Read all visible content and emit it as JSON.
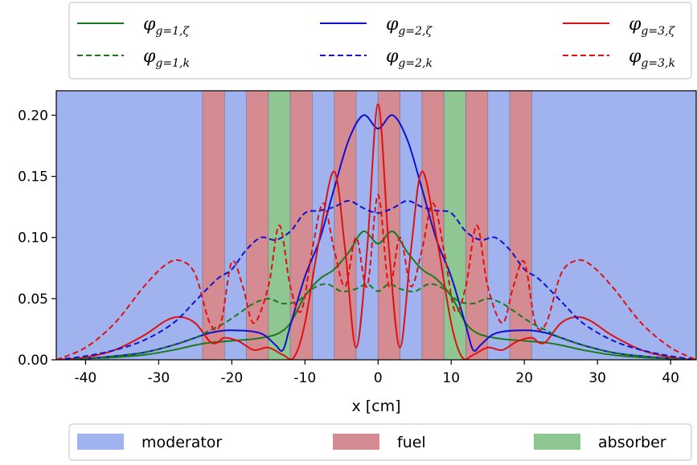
{
  "chart_data": {
    "type": "line",
    "xlabel": "x [cm]",
    "ylabel": "",
    "xlim": [
      -44,
      43.5
    ],
    "ylim": [
      0,
      0.22
    ],
    "xticks": [
      -40,
      -30,
      -20,
      -10,
      0,
      10,
      20,
      30,
      40
    ],
    "xtick_labels": [
      "-40",
      "-30",
      "-20",
      "-10",
      "0",
      "10",
      "20",
      "30",
      "40"
    ],
    "yticks": [
      0.0,
      0.05,
      0.1,
      0.15,
      0.2
    ],
    "ytick_labels": [
      "0.00",
      "0.05",
      "0.10",
      "0.15",
      "0.20"
    ],
    "grid": false,
    "regions": [
      {
        "material": "fuel",
        "x0": -24,
        "x1": -21
      },
      {
        "material": "fuel",
        "x0": -18,
        "x1": -15
      },
      {
        "material": "absorber",
        "x0": -15,
        "x1": -12
      },
      {
        "material": "fuel",
        "x0": -12,
        "x1": -9
      },
      {
        "material": "fuel",
        "x0": -6,
        "x1": -3
      },
      {
        "material": "fuel",
        "x0": 0,
        "x1": 3
      },
      {
        "material": "fuel",
        "x0": 6,
        "x1": 9
      },
      {
        "material": "absorber",
        "x0": 9,
        "x1": 12
      },
      {
        "material": "fuel",
        "x0": 12,
        "x1": 15
      },
      {
        "material": "fuel",
        "x0": 18,
        "x1": 21
      }
    ],
    "region_colors": {
      "moderator": "#a1b3ee",
      "fuel": "#d48b92",
      "absorber": "#8fc793"
    },
    "series": [
      {
        "name_base": "φ",
        "name_sub": "g=1,ζ",
        "color": "#1a7a1a",
        "dash": "solid",
        "x": [
          -44,
          -40,
          -36,
          -32,
          -28,
          -25,
          -23,
          -21,
          -19,
          -17,
          -15,
          -13.5,
          -12,
          -10,
          -8,
          -6,
          -4,
          -2,
          0,
          2,
          4,
          6,
          8,
          10,
          12,
          13.5,
          15,
          17,
          19,
          21,
          23,
          25,
          28,
          32,
          36,
          40,
          43.5
        ],
        "y": [
          0.0,
          0.001,
          0.002,
          0.004,
          0.008,
          0.012,
          0.014,
          0.015,
          0.016,
          0.017,
          0.019,
          0.022,
          0.03,
          0.052,
          0.066,
          0.074,
          0.088,
          0.105,
          0.095,
          0.105,
          0.088,
          0.074,
          0.066,
          0.052,
          0.03,
          0.022,
          0.019,
          0.017,
          0.016,
          0.015,
          0.014,
          0.012,
          0.008,
          0.004,
          0.002,
          0.001,
          0.0
        ]
      },
      {
        "name_base": "φ",
        "name_sub": "g=2,ζ",
        "color": "#1010d0",
        "dash": "solid",
        "x": [
          -44,
          -40,
          -36,
          -32,
          -28,
          -25,
          -23,
          -21,
          -19,
          -17,
          -15.5,
          -14,
          -13,
          -12,
          -10,
          -8,
          -6,
          -4,
          -2,
          0,
          2,
          4,
          6,
          8,
          10,
          12,
          13,
          14,
          15.5,
          17,
          19,
          21,
          23,
          25,
          28,
          32,
          36,
          40,
          43.5
        ],
        "y": [
          0.0,
          0.001,
          0.003,
          0.006,
          0.012,
          0.018,
          0.022,
          0.024,
          0.024,
          0.023,
          0.02,
          0.012,
          0.008,
          0.028,
          0.068,
          0.098,
          0.14,
          0.18,
          0.2,
          0.189,
          0.2,
          0.18,
          0.14,
          0.098,
          0.068,
          0.028,
          0.008,
          0.012,
          0.02,
          0.023,
          0.024,
          0.024,
          0.022,
          0.018,
          0.012,
          0.006,
          0.003,
          0.001,
          0.0
        ]
      },
      {
        "name_base": "φ",
        "name_sub": "g=3,ζ",
        "color": "#e01010",
        "dash": "solid",
        "x": [
          -44,
          -40,
          -36,
          -32,
          -29,
          -27,
          -25,
          -23,
          -22,
          -21,
          -19,
          -17,
          -15,
          -13,
          -11.5,
          -10,
          -8,
          -6,
          -4.5,
          -3,
          -1.5,
          0,
          1.5,
          3,
          4.5,
          6,
          8,
          10,
          11.5,
          13,
          15,
          17,
          19,
          21,
          22,
          23,
          25,
          27,
          29,
          32,
          36,
          40,
          43.5
        ],
        "y": [
          0.0,
          0.002,
          0.008,
          0.02,
          0.032,
          0.035,
          0.03,
          0.015,
          0.014,
          0.018,
          0.015,
          0.008,
          0.01,
          0.004,
          0.002,
          0.03,
          0.1,
          0.154,
          0.09,
          0.01,
          0.09,
          0.209,
          0.09,
          0.01,
          0.09,
          0.154,
          0.1,
          0.03,
          0.002,
          0.004,
          0.01,
          0.008,
          0.015,
          0.018,
          0.014,
          0.015,
          0.03,
          0.035,
          0.032,
          0.02,
          0.008,
          0.002,
          0.0
        ]
      },
      {
        "name_base": "φ",
        "name_sub": "g=1,k",
        "color": "#1a7a1a",
        "dash": "dashed",
        "x": [
          -44,
          -40,
          -36,
          -32,
          -28,
          -25,
          -23,
          -21,
          -19,
          -17,
          -15,
          -13,
          -11,
          -9,
          -7,
          -5,
          -3,
          -1.5,
          0,
          1.5,
          3,
          5,
          7,
          9,
          11,
          13,
          15,
          17,
          19,
          21,
          23,
          25,
          28,
          32,
          36,
          40,
          43.5
        ],
        "y": [
          0.0,
          0.001,
          0.003,
          0.006,
          0.012,
          0.018,
          0.024,
          0.03,
          0.038,
          0.046,
          0.05,
          0.046,
          0.048,
          0.058,
          0.062,
          0.056,
          0.058,
          0.062,
          0.056,
          0.062,
          0.058,
          0.056,
          0.062,
          0.058,
          0.048,
          0.046,
          0.05,
          0.046,
          0.038,
          0.03,
          0.024,
          0.018,
          0.012,
          0.006,
          0.003,
          0.001,
          0.0
        ]
      },
      {
        "name_base": "φ",
        "name_sub": "g=2,k",
        "color": "#1010d0",
        "dash": "dashed",
        "x": [
          -44,
          -40,
          -36,
          -32,
          -28,
          -25,
          -22,
          -20,
          -18,
          -16,
          -14,
          -12,
          -10,
          -8,
          -6,
          -4,
          -2,
          0,
          2,
          4,
          6,
          8,
          10,
          12,
          14,
          16,
          18,
          20,
          22,
          25,
          28,
          32,
          36,
          40,
          43.5
        ],
        "y": [
          0.0,
          0.003,
          0.008,
          0.016,
          0.03,
          0.048,
          0.066,
          0.074,
          0.09,
          0.1,
          0.098,
          0.105,
          0.12,
          0.122,
          0.125,
          0.13,
          0.124,
          0.12,
          0.124,
          0.13,
          0.125,
          0.122,
          0.12,
          0.105,
          0.098,
          0.1,
          0.09,
          0.074,
          0.066,
          0.048,
          0.03,
          0.016,
          0.008,
          0.003,
          0.0
        ]
      },
      {
        "name_base": "φ",
        "name_sub": "g=3,k",
        "color": "#e01010",
        "dash": "dashed",
        "x": [
          -44,
          -40,
          -36,
          -32,
          -29,
          -27,
          -25,
          -23,
          -21.5,
          -20,
          -18.5,
          -17,
          -15,
          -13.5,
          -12,
          -10.5,
          -9,
          -7.5,
          -6,
          -4.5,
          -3,
          -1.5,
          0,
          1.5,
          3,
          4.5,
          6,
          7.5,
          9,
          10.5,
          12,
          13.5,
          15,
          17,
          18.5,
          20,
          21.5,
          23,
          25,
          27,
          29,
          32,
          36,
          40,
          43.5
        ],
        "y": [
          0.0,
          0.01,
          0.03,
          0.06,
          0.078,
          0.081,
          0.07,
          0.03,
          0.03,
          0.08,
          0.06,
          0.03,
          0.06,
          0.11,
          0.06,
          0.04,
          0.09,
          0.128,
          0.09,
          0.06,
          0.1,
          0.06,
          0.135,
          0.06,
          0.1,
          0.06,
          0.09,
          0.128,
          0.09,
          0.04,
          0.06,
          0.11,
          0.06,
          0.03,
          0.06,
          0.08,
          0.03,
          0.03,
          0.07,
          0.081,
          0.078,
          0.06,
          0.03,
          0.01,
          0.0
        ]
      }
    ],
    "region_legend": [
      {
        "label": "moderator",
        "material": "moderator"
      },
      {
        "label": "fuel",
        "material": "fuel"
      },
      {
        "label": "absorber",
        "material": "absorber"
      }
    ]
  }
}
